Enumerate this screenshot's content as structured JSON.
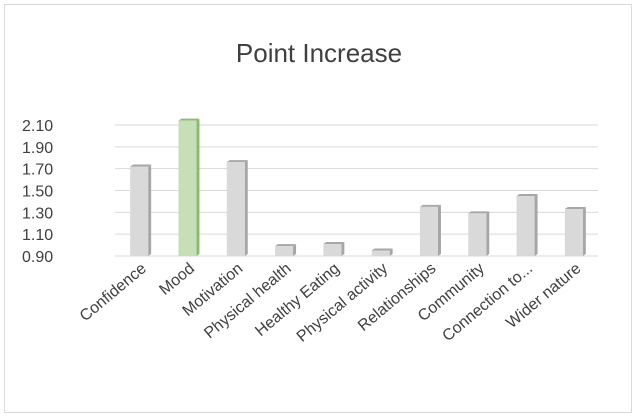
{
  "chart_data": {
    "type": "bar",
    "title": "Point Increase",
    "categories": [
      "Confidence",
      "Mood",
      "Motivation",
      "Physical health",
      "Healthy Eating",
      "Physical activity",
      "Relationships",
      "Community",
      "Connection to...",
      "Wider nature"
    ],
    "values": [
      1.72,
      2.14,
      1.76,
      0.99,
      1.01,
      0.95,
      1.35,
      1.29,
      1.45,
      1.33
    ],
    "yticks": [
      "0.90",
      "1.10",
      "1.30",
      "1.50",
      "1.70",
      "1.90",
      "2.10"
    ],
    "ylim": [
      0.9,
      2.1
    ],
    "xlabel": "",
    "ylabel": "",
    "grid": true,
    "legend": "none",
    "colors": {
      "bar": "#d9d9d9",
      "bar_side": "#a6a6a6",
      "highlight": "#c5e0b4",
      "highlight_side": "#8fb878",
      "gridline": "#d9d9d9"
    },
    "highlight_index": 1
  }
}
